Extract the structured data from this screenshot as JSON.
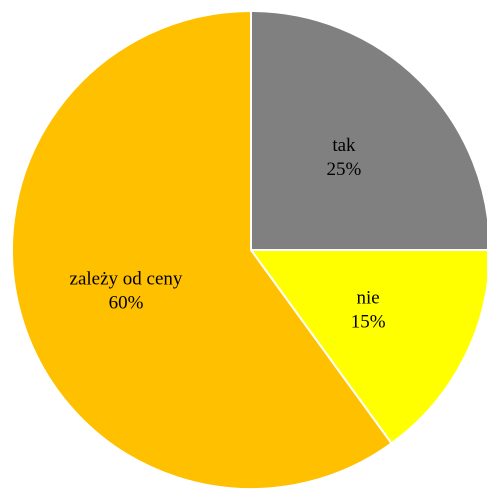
{
  "chart_data": {
    "type": "pie",
    "start_angle_deg": 0,
    "direction": "clockwise",
    "slices": [
      {
        "label": "tak",
        "value": 25,
        "value_label": "25%",
        "color": "#808080"
      },
      {
        "label": "nie",
        "value": 15,
        "value_label": "15%",
        "color": "#FFFF00"
      },
      {
        "label": "zależy od ceny",
        "value": 60,
        "value_label": "60%",
        "color": "#FFC000"
      }
    ],
    "slice_border_color": "#FFFFFF",
    "legend": "none"
  }
}
